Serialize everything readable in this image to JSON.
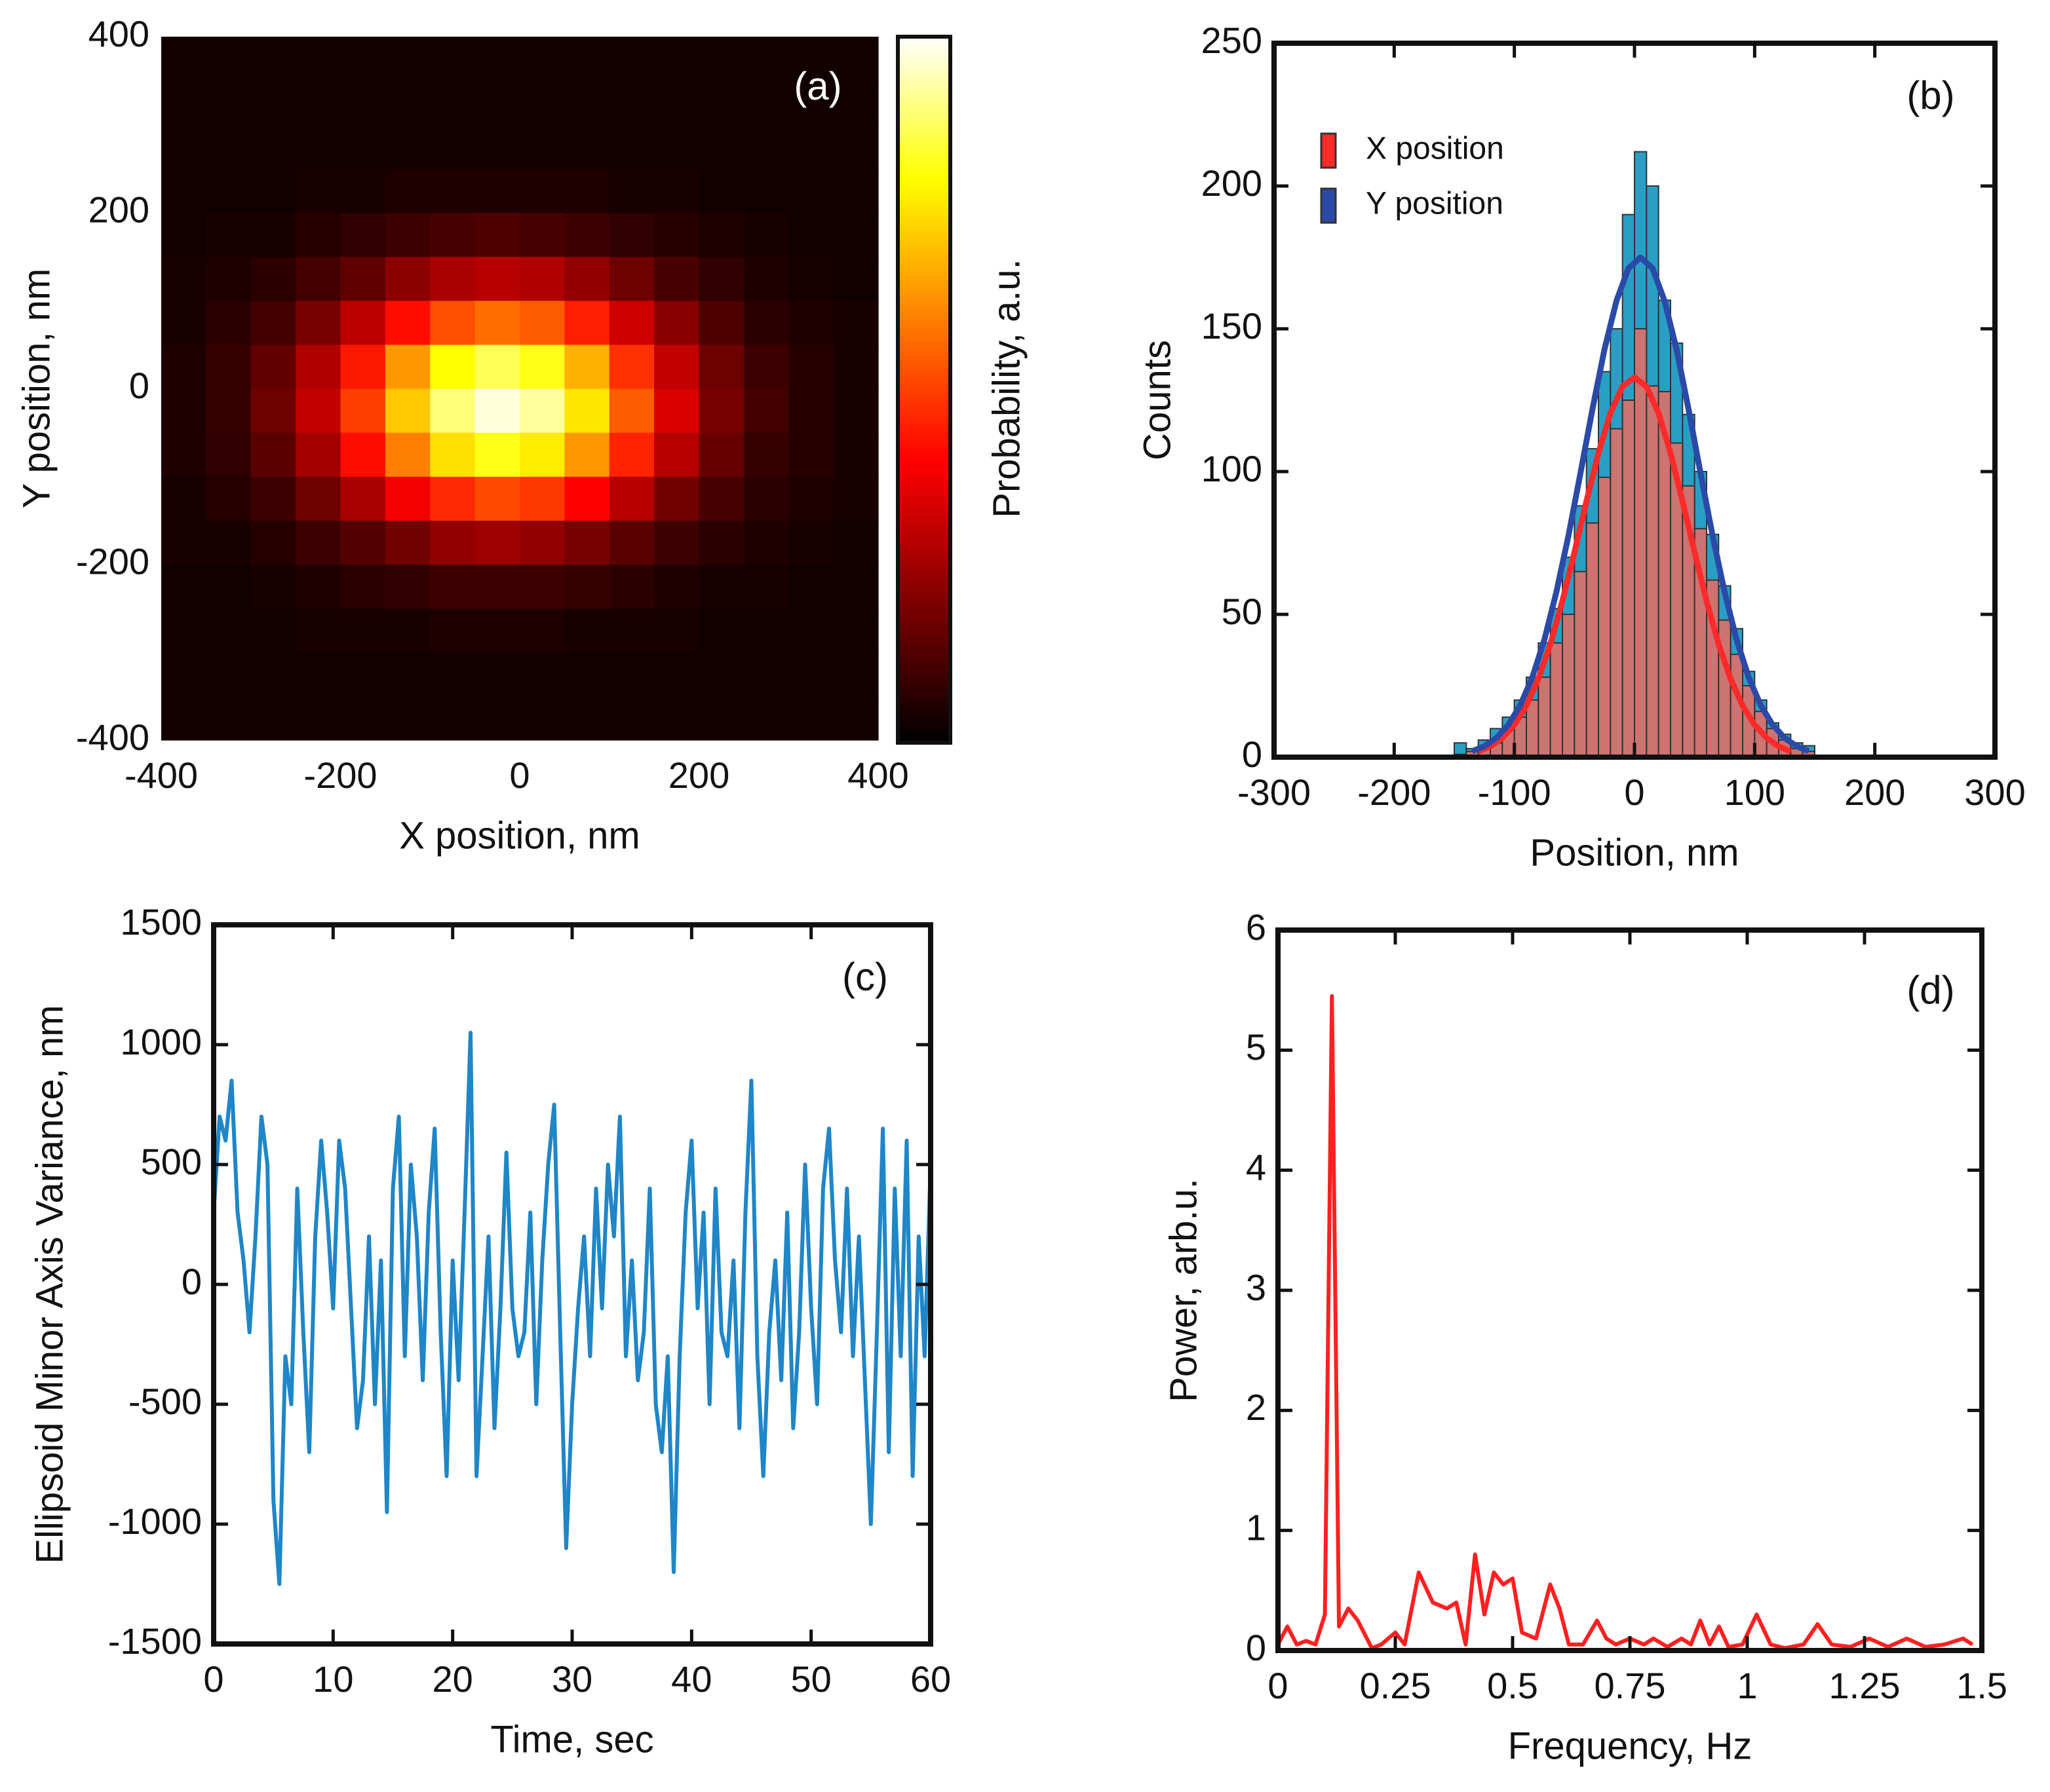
{
  "chart_data": [
    {
      "type": "heatmap",
      "annotation": "(a)",
      "xlabel": "X position, nm",
      "ylabel": "Y position, nm",
      "colorbar_label": "Probability, a.u.",
      "xlim": [
        -400,
        400
      ],
      "ylim": [
        -400,
        400
      ],
      "xticks": [
        -400,
        -200,
        0,
        200,
        400
      ],
      "yticks": [
        -400,
        -200,
        0,
        200,
        400
      ],
      "zlim": [
        0,
        105
      ],
      "xbins": [
        -400,
        -350,
        -300,
        -250,
        -200,
        -150,
        -100,
        -50,
        0,
        50,
        100,
        150,
        200,
        250,
        300,
        350,
        400
      ],
      "ybins": [
        -400,
        -350,
        -300,
        -250,
        -200,
        -150,
        -100,
        -50,
        0,
        50,
        100,
        150,
        200,
        250,
        300,
        350,
        400
      ],
      "z": [
        [
          3,
          3,
          3,
          3,
          3,
          3,
          3,
          3,
          3,
          3,
          3,
          3,
          3,
          3,
          3,
          3
        ],
        [
          3,
          3,
          3,
          3,
          3,
          3,
          3,
          3,
          3,
          3,
          3,
          3,
          3,
          3,
          3,
          3
        ],
        [
          3,
          3,
          3,
          4,
          4,
          4,
          5,
          5,
          5,
          4,
          4,
          4,
          3,
          3,
          3,
          3
        ],
        [
          3,
          3,
          4,
          5,
          7,
          8,
          10,
          10,
          10,
          9,
          7,
          5,
          4,
          4,
          3,
          3
        ],
        [
          4,
          4,
          6,
          10,
          14,
          19,
          24,
          26,
          24,
          20,
          15,
          10,
          7,
          5,
          4,
          3
        ],
        [
          4,
          6,
          10,
          18,
          28,
          40,
          49,
          54,
          51,
          42,
          30,
          19,
          12,
          7,
          5,
          4
        ],
        [
          5,
          8,
          15,
          27,
          44,
          63,
          79,
          86,
          81,
          67,
          48,
          30,
          17,
          9,
          6,
          4
        ],
        [
          5,
          9,
          18,
          32,
          52,
          75,
          94,
          102,
          97,
          80,
          57,
          36,
          20,
          11,
          6,
          4
        ],
        [
          5,
          9,
          16,
          29,
          46,
          67,
          84,
          91,
          86,
          71,
          50,
          32,
          18,
          10,
          6,
          4
        ],
        [
          4,
          7,
          11,
          20,
          31,
          44,
          55,
          60,
          57,
          47,
          34,
          22,
          13,
          7,
          5,
          4
        ],
        [
          4,
          5,
          7,
          11,
          16,
          23,
          28,
          30,
          29,
          24,
          18,
          12,
          8,
          5,
          4,
          3
        ],
        [
          3,
          4,
          4,
          6,
          8,
          10,
          12,
          13,
          12,
          10,
          8,
          6,
          5,
          4,
          3,
          3
        ],
        [
          3,
          3,
          3,
          4,
          4,
          5,
          5,
          5,
          5,
          5,
          4,
          4,
          3,
          3,
          3,
          3
        ],
        [
          3,
          3,
          3,
          3,
          3,
          3,
          3,
          3,
          3,
          3,
          3,
          3,
          3,
          3,
          3,
          3
        ],
        [
          3,
          3,
          3,
          3,
          3,
          3,
          3,
          3,
          3,
          3,
          3,
          3,
          3,
          3,
          3,
          3
        ],
        [
          3,
          3,
          3,
          3,
          3,
          3,
          3,
          3,
          3,
          3,
          3,
          3,
          3,
          3,
          3,
          3
        ]
      ]
    },
    {
      "type": "histogram",
      "annotation": "(b)",
      "xlabel": "Position, nm",
      "ylabel": "Counts",
      "xlim": [
        -300,
        300
      ],
      "ylim": [
        0,
        250
      ],
      "xticks": [
        -300,
        -200,
        -100,
        0,
        100,
        200,
        300
      ],
      "yticks": [
        0,
        50,
        100,
        150,
        200,
        250
      ],
      "bins": [
        -150,
        -140,
        -130,
        -120,
        -110,
        -100,
        -90,
        -80,
        -70,
        -60,
        -50,
        -40,
        -30,
        -20,
        -10,
        0,
        10,
        20,
        30,
        40,
        50,
        60,
        70,
        80,
        90,
        100,
        110,
        120,
        130,
        140,
        150
      ],
      "series": [
        {
          "name": "X position",
          "color": "#ff2a2a",
          "bar_color": "#d9706a",
          "values": [
            1,
            2,
            3,
            5,
            10,
            14,
            20,
            28,
            40,
            50,
            65,
            82,
            98,
            115,
            125,
            150,
            130,
            128,
            110,
            95,
            80,
            62,
            48,
            36,
            25,
            16,
            10,
            6,
            3,
            2
          ],
          "fit": {
            "x": [
              -130,
              -120,
              -110,
              -100,
              -90,
              -80,
              -70,
              -60,
              -50,
              -40,
              -30,
              -20,
              -10,
              0,
              10,
              20,
              30,
              40,
              50,
              60,
              70,
              80,
              90,
              100,
              110,
              120,
              130
            ],
            "values": [
              2.0,
              3.8,
              6.7,
              11.3,
              18.0,
              27.4,
              39.6,
              54.7,
              71.7,
              89.6,
              106.5,
              120.5,
              129.8,
              133,
              129.8,
              120.5,
              106.5,
              89.6,
              71.7,
              54.7,
              39.6,
              27.4,
              18.0,
              11.3,
              6.7,
              3.8,
              2.0
            ]
          }
        },
        {
          "name": "Y position",
          "color": "#2b4aa8",
          "bar_color": "#2a9fc4",
          "values": [
            5,
            3,
            6,
            10,
            14,
            20,
            28,
            40,
            52,
            70,
            88,
            108,
            135,
            150,
            190,
            212,
            200,
            160,
            145,
            120,
            100,
            78,
            60,
            45,
            30,
            20,
            12,
            8,
            5,
            4
          ],
          "fit": {
            "x": [
              -135,
              -125,
              -115,
              -105,
              -95,
              -85,
              -75,
              -65,
              -55,
              -45,
              -35,
              -25,
              -15,
              -5,
              5,
              15,
              25,
              35,
              45,
              55,
              65,
              75,
              85,
              95,
              105,
              115,
              125,
              135,
              145
            ],
            "values": [
              2.1,
              3.8,
              6.7,
              11.3,
              18.2,
              28.0,
              41.1,
              57.8,
              77.5,
              99.4,
              121.8,
              142.8,
              159.8,
              171.2,
              175,
              171.2,
              159.8,
              142.8,
              121.8,
              99.4,
              77.5,
              57.8,
              41.1,
              28.0,
              18.2,
              11.3,
              6.7,
              3.8,
              2.1
            ]
          }
        }
      ]
    },
    {
      "type": "line",
      "annotation": "(c)",
      "xlabel": "Time, sec",
      "ylabel": "Ellipsoid Minor Axis Variance, nm",
      "color": "#1f86c8",
      "xlim": [
        0,
        60
      ],
      "ylim": [
        -1500,
        1500
      ],
      "xticks": [
        0,
        10,
        20,
        30,
        40,
        50,
        60
      ],
      "yticks": [
        -1500,
        -1000,
        -500,
        0,
        500,
        1000,
        1500
      ],
      "x": [
        0,
        0.5,
        1,
        1.5,
        2,
        2.5,
        3,
        3.5,
        4,
        4.5,
        5,
        5.5,
        6,
        6.5,
        7,
        7.5,
        8,
        8.5,
        9,
        9.5,
        10,
        10.5,
        11,
        11.5,
        12,
        12.5,
        13,
        13.5,
        14,
        14.5,
        15,
        15.5,
        16,
        16.5,
        17,
        17.5,
        18,
        18.5,
        19,
        19.5,
        20,
        20.5,
        21,
        21.5,
        22,
        22.5,
        23,
        23.5,
        24,
        24.5,
        25,
        25.5,
        26,
        26.5,
        27,
        27.5,
        28,
        28.5,
        29,
        29.5,
        30,
        30.5,
        31,
        31.5,
        32,
        32.5,
        33,
        33.5,
        34,
        34.5,
        35,
        35.5,
        36,
        36.5,
        37,
        37.5,
        38,
        38.5,
        39,
        39.5,
        40,
        40.5,
        41,
        41.5,
        42,
        42.5,
        43,
        43.5,
        44,
        44.5,
        45,
        45.5,
        46,
        46.5,
        47,
        47.5,
        48,
        48.5,
        49,
        49.5,
        50,
        50.5,
        51,
        51.5,
        52,
        52.5,
        53,
        53.5,
        54,
        54.5,
        55,
        55.5,
        56,
        56.5,
        57,
        57.5,
        58,
        58.5,
        59,
        59.5,
        60
      ],
      "values": [
        300,
        700,
        600,
        850,
        300,
        100,
        -200,
        200,
        700,
        500,
        -900,
        -1250,
        -300,
        -500,
        400,
        -200,
        -700,
        200,
        600,
        300,
        -100,
        600,
        400,
        -100,
        -600,
        -400,
        200,
        -500,
        100,
        -950,
        400,
        700,
        -300,
        500,
        200,
        -400,
        300,
        650,
        -200,
        -800,
        100,
        -400,
        300,
        1050,
        -800,
        -300,
        200,
        -600,
        -100,
        550,
        -100,
        -300,
        -200,
        300,
        -500,
        100,
        500,
        750,
        -200,
        -1100,
        -500,
        -100,
        200,
        -300,
        400,
        -100,
        500,
        200,
        700,
        -300,
        100,
        -400,
        -200,
        400,
        -500,
        -700,
        -300,
        -1200,
        -300,
        300,
        600,
        -100,
        300,
        -500,
        400,
        -200,
        -300,
        100,
        -600,
        300,
        850,
        -300,
        -800,
        -200,
        100,
        -400,
        300,
        -600,
        -200,
        500,
        -100,
        -500,
        400,
        650,
        100,
        -200,
        400,
        -300,
        200,
        -400,
        -1000,
        -200,
        650,
        -700,
        400,
        -300,
        600,
        -800,
        200,
        -300,
        500
      ]
    },
    {
      "type": "line",
      "annotation": "(d)",
      "xlabel": "Frequency, Hz",
      "ylabel": "Power, arb.u.",
      "color": "#ff2020",
      "xlim": [
        0,
        1.5
      ],
      "ylim": [
        0,
        6
      ],
      "xticks": [
        0,
        0.25,
        0.5,
        0.75,
        1,
        1.25,
        1.5
      ],
      "yticks": [
        0,
        1,
        2,
        3,
        4,
        5,
        6
      ],
      "x": [
        0,
        0.02,
        0.04,
        0.06,
        0.08,
        0.1,
        0.115,
        0.13,
        0.15,
        0.17,
        0.2,
        0.22,
        0.25,
        0.27,
        0.3,
        0.33,
        0.36,
        0.38,
        0.4,
        0.42,
        0.44,
        0.46,
        0.48,
        0.5,
        0.52,
        0.55,
        0.58,
        0.6,
        0.62,
        0.65,
        0.68,
        0.7,
        0.72,
        0.75,
        0.78,
        0.8,
        0.83,
        0.86,
        0.88,
        0.9,
        0.92,
        0.94,
        0.96,
        0.99,
        1.02,
        1.05,
        1.08,
        1.12,
        1.15,
        1.18,
        1.22,
        1.26,
        1.3,
        1.34,
        1.38,
        1.42,
        1.46,
        1.48
      ],
      "values": [
        0.05,
        0.2,
        0.05,
        0.08,
        0.05,
        0.3,
        5.45,
        0.2,
        0.35,
        0.25,
        0.02,
        0.05,
        0.15,
        0.05,
        0.65,
        0.4,
        0.35,
        0.4,
        0.05,
        0.8,
        0.3,
        0.65,
        0.55,
        0.6,
        0.15,
        0.1,
        0.55,
        0.35,
        0.05,
        0.05,
        0.25,
        0.1,
        0.05,
        0.1,
        0.05,
        0.1,
        0.03,
        0.1,
        0.05,
        0.25,
        0.05,
        0.2,
        0.03,
        0.05,
        0.3,
        0.05,
        0.02,
        0.05,
        0.22,
        0.05,
        0.03,
        0.1,
        0.03,
        0.1,
        0.03,
        0.05,
        0.1,
        0.05
      ]
    }
  ]
}
